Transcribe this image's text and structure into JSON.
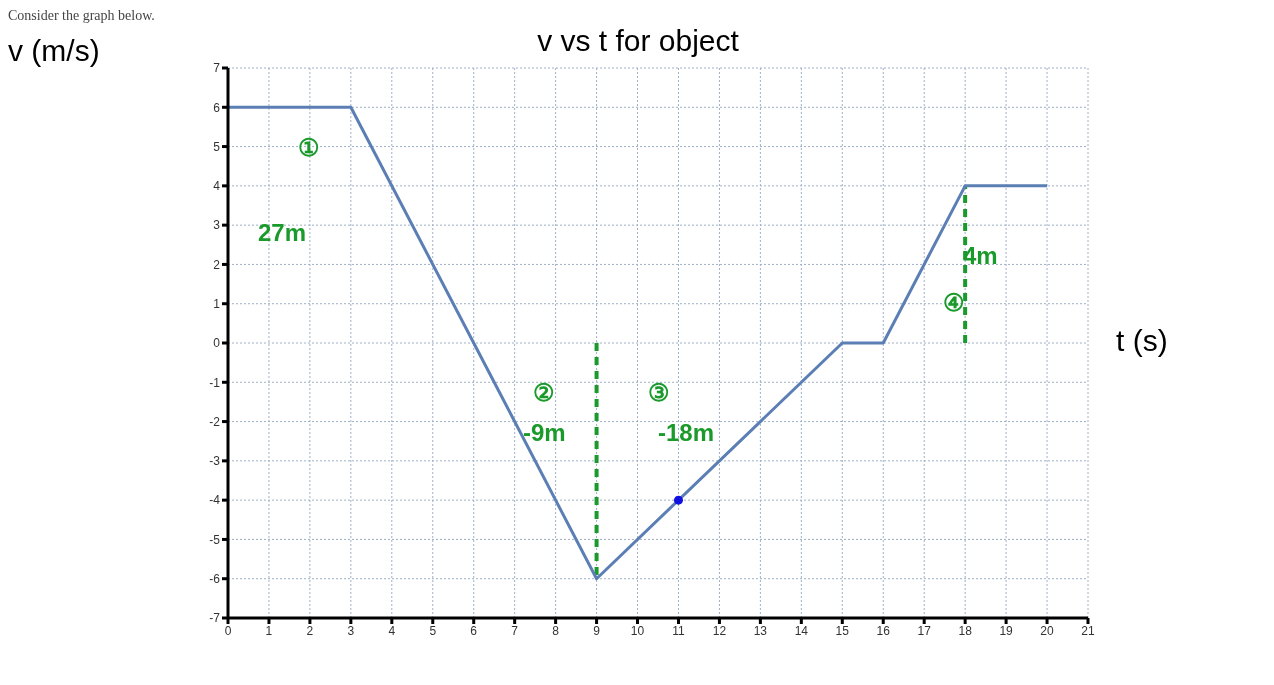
{
  "chart_data": {
    "type": "line",
    "title": "v vs t for object",
    "xlabel": "t (s)",
    "ylabel": "v (m/s)",
    "annotations": [
      "Consider the graph below.",
      "①",
      "27m",
      "②",
      "-9m",
      "③",
      "-18m",
      "④",
      "4m"
    ],
    "series": [
      {
        "color": "#5b7fb5",
        "x": [
          0,
          3,
          6,
          9,
          15,
          16,
          18,
          20
        ],
        "values": [
          6,
          6,
          0,
          -6,
          0,
          0,
          4,
          4
        ],
        "marker": "none"
      },
      {
        "type": "scatter",
        "color": "#1010e0",
        "x": [
          11
        ],
        "values": [
          -4
        ],
        "marker": "circle"
      }
    ],
    "xlim": [
      0,
      21
    ],
    "xticks": [
      0,
      1,
      2,
      3,
      4,
      5,
      6,
      7,
      8,
      9,
      10,
      11,
      12,
      13,
      14,
      15,
      16,
      17,
      18,
      19,
      20,
      21
    ],
    "ylim": [
      -7,
      7
    ],
    "yticks": [
      -7,
      -6,
      -5,
      -4,
      -3,
      -2,
      -1,
      0,
      1,
      2,
      3,
      4,
      5,
      6,
      7
    ],
    "grid": true,
    "ref_lines": [
      {
        "axis": "x",
        "value": 9,
        "color": "#1a9a2a",
        "line_style": "dashed"
      },
      {
        "axis": "x",
        "value": 18,
        "color": "#1a9a2a",
        "line_style": "dashed"
      }
    ]
  }
}
